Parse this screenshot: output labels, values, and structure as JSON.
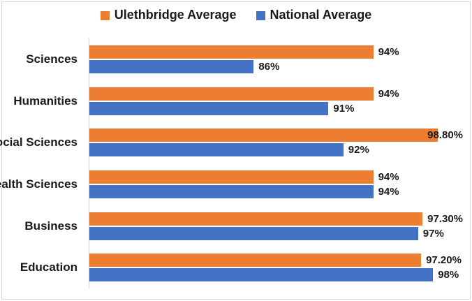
{
  "legend": [
    {
      "label": "Ulethbridge Average",
      "color": "#ED7D31"
    },
    {
      "label": "National Average",
      "color": "#4472C4"
    }
  ],
  "chart_data": {
    "type": "bar",
    "orientation": "horizontal",
    "title": "",
    "xlabel": "",
    "ylabel": "",
    "categories": [
      "Sciences",
      "Humanities",
      "Social Sciences",
      "Health Sciences",
      "Business",
      "Education"
    ],
    "series": [
      {
        "name": "Ulethbridge Average",
        "color": "#ED7D31",
        "values": [
          94,
          94,
          98.8,
          94,
          97.3,
          97.2
        ],
        "labels": [
          "94%",
          "94%",
          "98.80%",
          "94%",
          "97.30%",
          "97.20%"
        ]
      },
      {
        "name": "National Average",
        "color": "#4472C4",
        "values": [
          86,
          91,
          92,
          94,
          97,
          98
        ],
        "labels": [
          "86%",
          "91%",
          "92%",
          "94%",
          "97%",
          "98%"
        ]
      }
    ],
    "xlim": [
      75,
      100
    ],
    "grid": false,
    "axis_line_color": "#d0d0d0",
    "legend_position": "top"
  }
}
